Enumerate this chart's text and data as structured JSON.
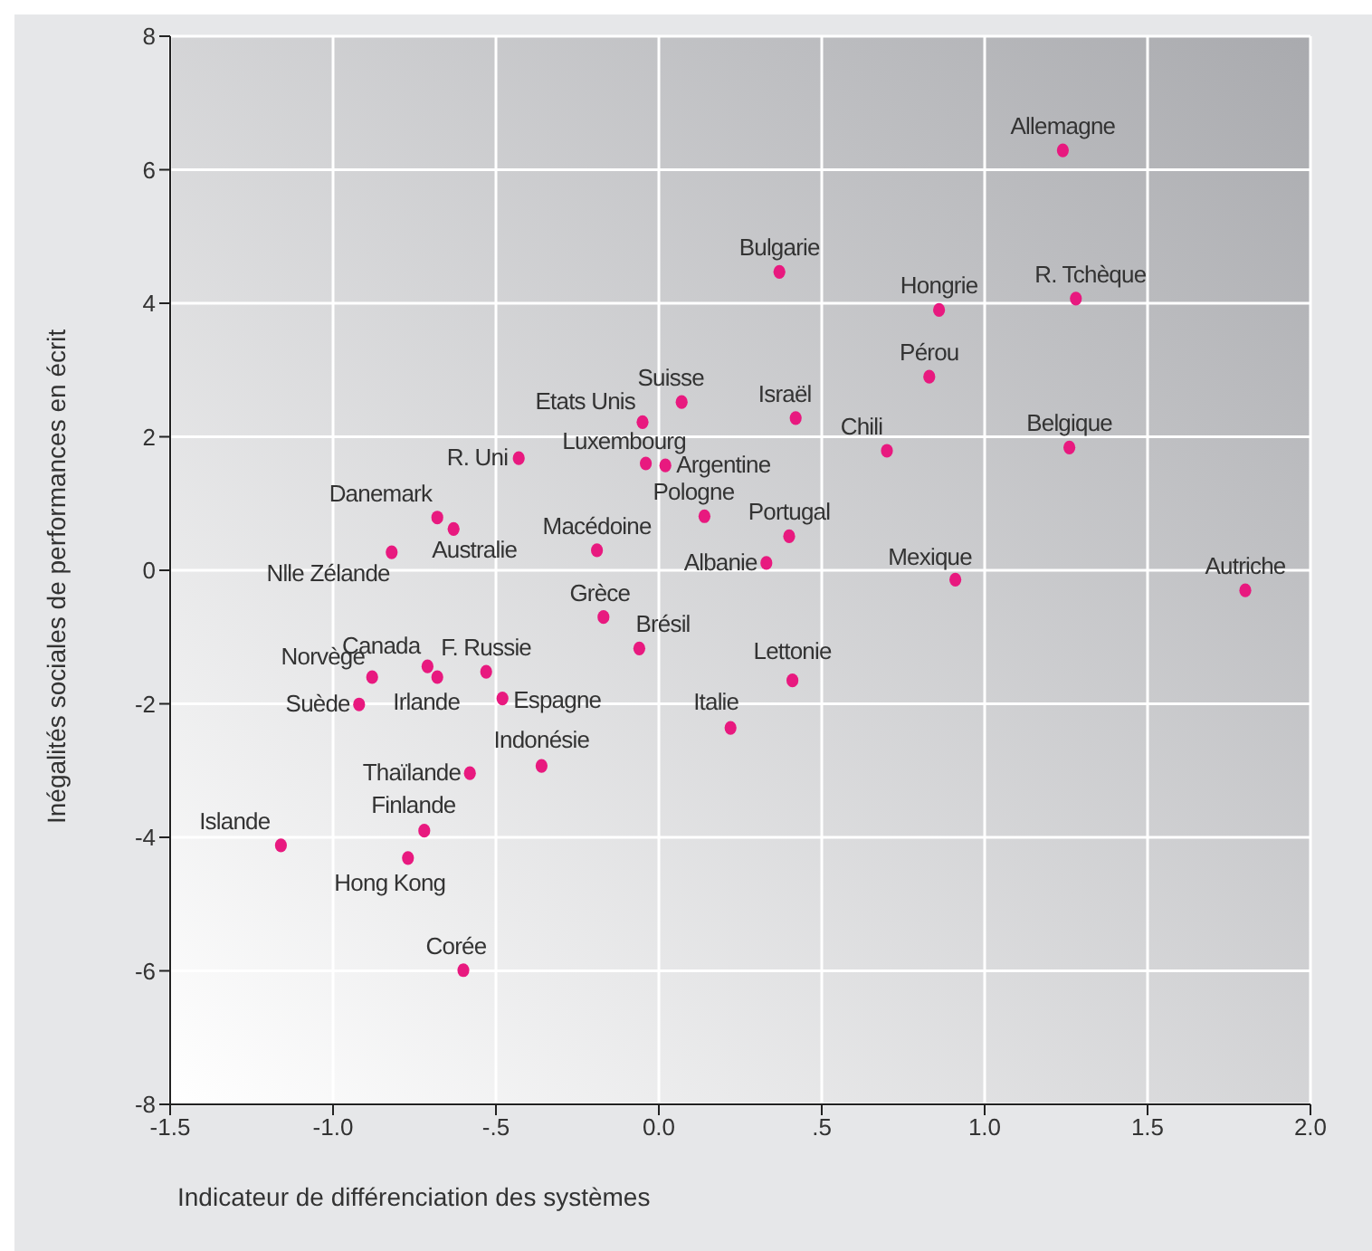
{
  "chart_data": {
    "type": "scatter",
    "xlabel": "Indicateur de différenciation des systèmes",
    "ylabel": "Inégalités sociales de performances en écrit",
    "xlim": [
      -1.5,
      2.0
    ],
    "xticks": [
      {
        "value": -1.5,
        "label": "-1.5"
      },
      {
        "value": -1.0,
        "label": "-1.0"
      },
      {
        "value": -0.5,
        "label": "-.5"
      },
      {
        "value": 0,
        "label": "0.0"
      },
      {
        "value": 0.5,
        "label": ".5"
      },
      {
        "value": 1.0,
        "label": "1.0"
      },
      {
        "value": 1.5,
        "label": "1.5"
      },
      {
        "value": 2.0,
        "label": "2.0"
      }
    ],
    "ylim": [
      -8,
      8
    ],
    "yticks": [
      -8,
      -6,
      -4,
      -2,
      0,
      2,
      4,
      6,
      8
    ],
    "grid": true,
    "marker": "circle",
    "series": [
      {
        "color": "#e8197f",
        "x": [
          1.24,
          0.37,
          0.86,
          1.28,
          0.83,
          0.07,
          0.42,
          -0.05,
          0.7,
          1.26,
          -0.43,
          -0.04,
          0.02,
          0.14,
          -0.68,
          -0.63,
          0.4,
          -0.19,
          -0.82,
          0.33,
          0.91,
          1.8,
          -0.17,
          -0.06,
          -0.53,
          -0.71,
          -0.68,
          -0.88,
          0.41,
          -0.48,
          -0.92,
          0.22,
          -0.36,
          -0.58,
          -0.72,
          -1.16,
          -0.77,
          -0.6
        ],
        "values": [
          6.29,
          4.47,
          3.9,
          4.07,
          2.9,
          2.52,
          2.28,
          2.22,
          1.79,
          1.84,
          1.68,
          1.6,
          1.57,
          0.81,
          0.79,
          0.62,
          0.51,
          0.3,
          0.27,
          0.11,
          -0.14,
          -0.3,
          -0.7,
          -1.17,
          -1.52,
          -1.44,
          -1.6,
          -1.6,
          -1.65,
          -1.92,
          -2.01,
          -2.36,
          -2.93,
          -3.04,
          -3.9,
          -4.12,
          -4.31,
          -5.99
        ]
      }
    ],
    "annotations": [
      {
        "text": "Allemagne",
        "x": 1.24,
        "y": 6.29
      },
      {
        "text": "Bulgarie",
        "x": 0.37,
        "y": 4.47
      },
      {
        "text": "Hongrie",
        "x": 0.86,
        "y": 3.9
      },
      {
        "text": "R. Tchèque",
        "x": 1.28,
        "y": 4.07
      },
      {
        "text": "Pérou",
        "x": 0.83,
        "y": 2.9
      },
      {
        "text": "Suisse",
        "x": 0.07,
        "y": 2.52
      },
      {
        "text": "Israël",
        "x": 0.42,
        "y": 2.28
      },
      {
        "text": "Etats Unis",
        "x": -0.05,
        "y": 2.22
      },
      {
        "text": "Chili",
        "x": 0.7,
        "y": 1.79
      },
      {
        "text": "Belgique",
        "x": 1.26,
        "y": 1.84
      },
      {
        "text": "R. Uni",
        "x": -0.43,
        "y": 1.68
      },
      {
        "text": "Luxembourg",
        "x": -0.04,
        "y": 1.6
      },
      {
        "text": "Argentine",
        "x": 0.02,
        "y": 1.57
      },
      {
        "text": "Pologne",
        "x": 0.14,
        "y": 0.81
      },
      {
        "text": "Danemark",
        "x": -0.68,
        "y": 0.79
      },
      {
        "text": "Australie",
        "x": -0.63,
        "y": 0.62
      },
      {
        "text": "Portugal",
        "x": 0.4,
        "y": 0.51
      },
      {
        "text": "Macédoine",
        "x": -0.19,
        "y": 0.3
      },
      {
        "text": "Nlle Zélande",
        "x": -0.82,
        "y": 0.27
      },
      {
        "text": "Albanie",
        "x": 0.33,
        "y": 0.11
      },
      {
        "text": "Mexique",
        "x": 0.91,
        "y": -0.14
      },
      {
        "text": "Autriche",
        "x": 1.8,
        "y": -0.3
      },
      {
        "text": "Grèce",
        "x": -0.17,
        "y": -0.7
      },
      {
        "text": "Brésil",
        "x": -0.06,
        "y": -1.17
      },
      {
        "text": "F. Russie",
        "x": -0.53,
        "y": -1.52
      },
      {
        "text": "Canada",
        "x": -0.71,
        "y": -1.44
      },
      {
        "text": "Irlande",
        "x": -0.68,
        "y": -1.6
      },
      {
        "text": "Norvège",
        "x": -0.88,
        "y": -1.6
      },
      {
        "text": "Lettonie",
        "x": 0.41,
        "y": -1.65
      },
      {
        "text": "Espagne",
        "x": -0.48,
        "y": -1.92
      },
      {
        "text": "Suède",
        "x": -0.92,
        "y": -2.01
      },
      {
        "text": "Italie",
        "x": 0.22,
        "y": -2.36
      },
      {
        "text": "Indonésie",
        "x": -0.36,
        "y": -2.93
      },
      {
        "text": "Thaïlande",
        "x": -0.58,
        "y": -3.04
      },
      {
        "text": "Finlande",
        "x": -0.72,
        "y": -3.9
      },
      {
        "text": "Islande",
        "x": -1.16,
        "y": -4.12
      },
      {
        "text": "Hong Kong",
        "x": -0.77,
        "y": -4.31
      },
      {
        "text": "Corée",
        "x": -0.6,
        "y": -5.99
      }
    ]
  }
}
